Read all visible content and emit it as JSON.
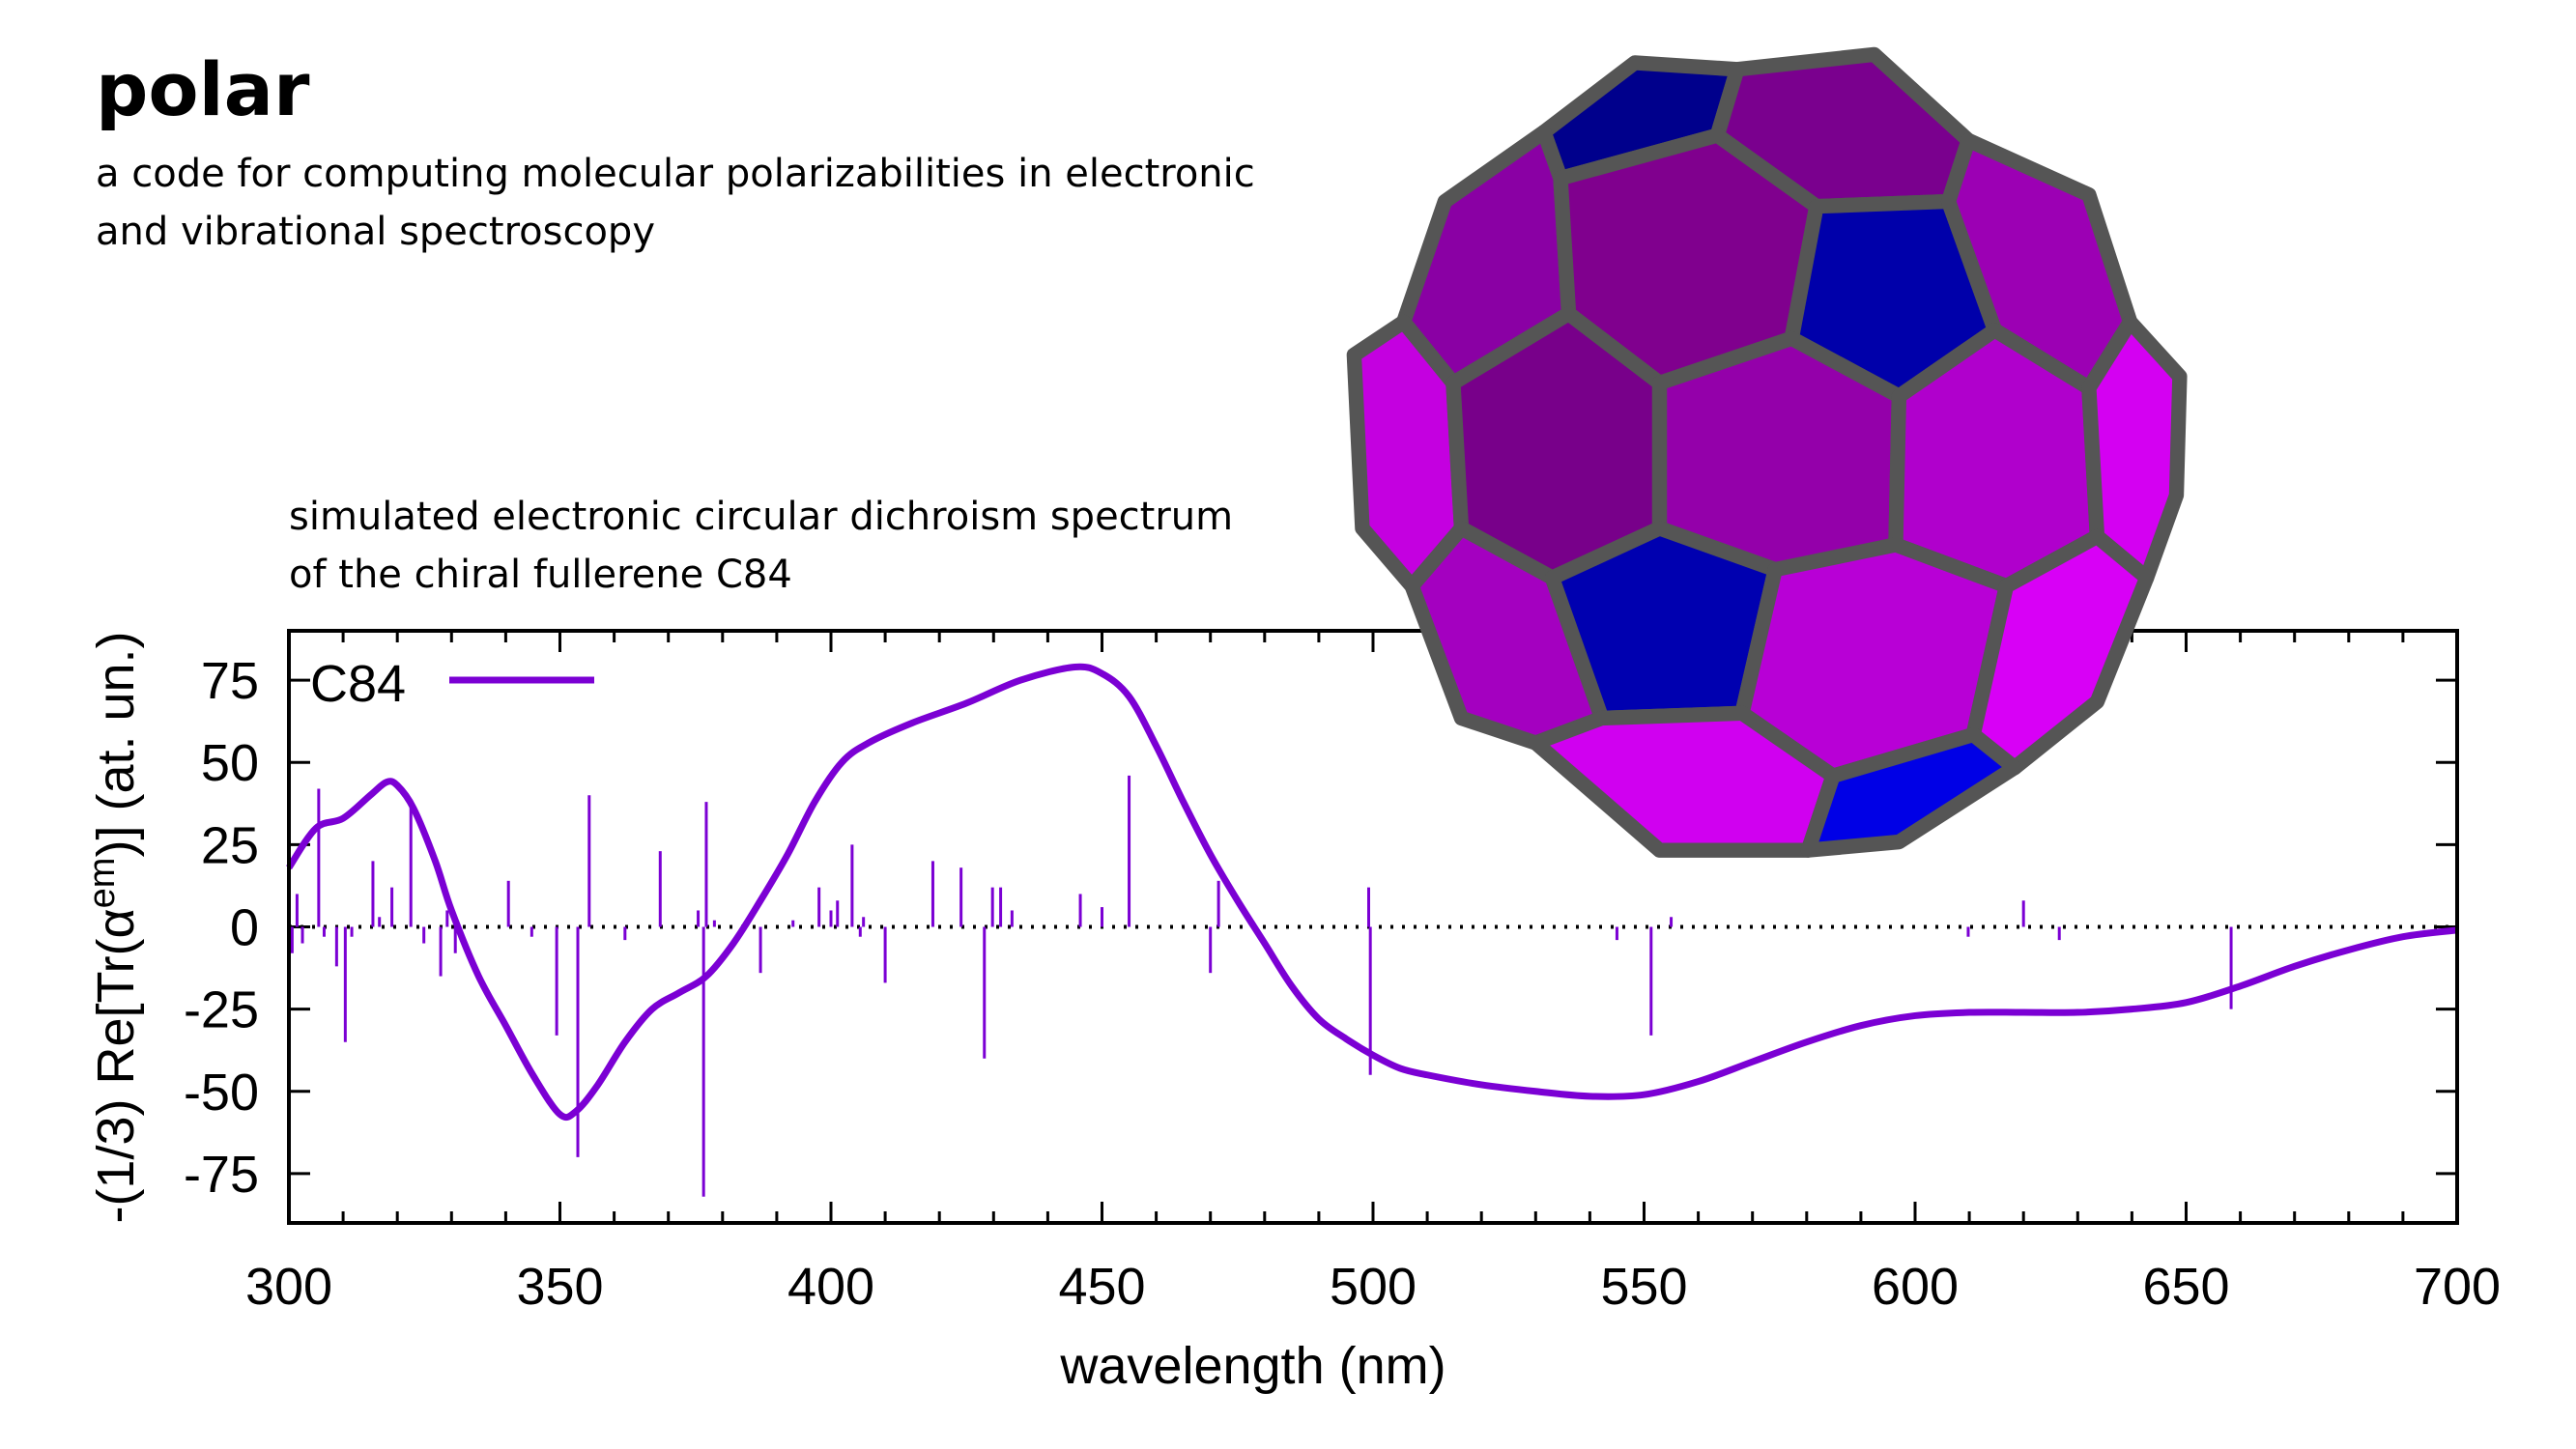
{
  "header": {
    "title": "polar",
    "subtitle_line1": "a code for computing molecular polarizabilities in electronic",
    "subtitle_line2": "and vibrational spectroscopy"
  },
  "caption": {
    "line1": "simulated electronic circular dichroism spectrum",
    "line2": "of the chiral fullerene C84"
  },
  "colors": {
    "series": "#7b00d4",
    "frame": "#000000",
    "fullerene_edge": "#555555"
  },
  "chart_data": {
    "type": "line",
    "title": "",
    "xlabel": "wavelength (nm)",
    "ylabel_main": "-(1/3) Re[Tr(α",
    "ylabel_sup": "em",
    "ylabel_tail": ")] (at. un.)",
    "xlim": [
      300,
      700
    ],
    "ylim": [
      -90,
      90
    ],
    "xticks": [
      300,
      350,
      400,
      450,
      500,
      550,
      600,
      650,
      700
    ],
    "yticks": [
      -75,
      -50,
      -25,
      0,
      25,
      50,
      75
    ],
    "xtick_labels": [
      "300",
      "350",
      "400",
      "450",
      "500",
      "550",
      "600",
      "650",
      "700"
    ],
    "ytick_labels": [
      "-75",
      "-50",
      "-25",
      "0",
      "25",
      "50",
      "75"
    ],
    "zero_line": "dotted",
    "legend": {
      "position": "top-left",
      "entries": [
        "C84"
      ]
    },
    "series": [
      {
        "name": "C84",
        "x": [
          300,
          305,
          310,
          315,
          318,
          320,
          323,
          327,
          330,
          335,
          340,
          345,
          350,
          353,
          357,
          362,
          367,
          372,
          377,
          382,
          387,
          392,
          397,
          402,
          407,
          415,
          425,
          435,
          445,
          450,
          455,
          460,
          465,
          470,
          475,
          480,
          485,
          490,
          495,
          500,
          505,
          510,
          520,
          530,
          540,
          550,
          560,
          570,
          580,
          590,
          600,
          610,
          620,
          630,
          640,
          650,
          660,
          670,
          680,
          690,
          700
        ],
        "y": [
          18,
          30,
          33,
          40,
          44,
          43,
          36,
          20,
          5,
          -15,
          -30,
          -45,
          -57,
          -56,
          -48,
          -35,
          -25,
          -20,
          -15,
          -5,
          8,
          22,
          38,
          50,
          56,
          62,
          68,
          75,
          79,
          77,
          70,
          55,
          38,
          22,
          8,
          -5,
          -18,
          -28,
          -34,
          -39,
          -43,
          -45,
          -48,
          -50,
          -51.5,
          -51,
          -47,
          -41,
          -35,
          -30,
          -27,
          -26,
          -26,
          -26,
          -25,
          -23,
          -18,
          -12,
          -7,
          -3,
          -1
        ]
      }
    ],
    "sticks": {
      "x": [
        300.6,
        301.5,
        302.5,
        305.5,
        306.5,
        308.8,
        310.4,
        311.6,
        315.5,
        316.7,
        319,
        322.5,
        324.9,
        328,
        329.2,
        330.7,
        340.5,
        344.8,
        349.4,
        353.3,
        355.4,
        362,
        368.5,
        375.5,
        376.5,
        377,
        378.5,
        387,
        393,
        397.8,
        400,
        401.2,
        403.9,
        405.4,
        406,
        410,
        418.8,
        424,
        428.3,
        429.8,
        431.3,
        433.4,
        446,
        450,
        455,
        470,
        471.5,
        499.2,
        499.5,
        545,
        551.3,
        555,
        609.8,
        620,
        626.6,
        658.3
      ],
      "y": [
        -8,
        10,
        -5,
        42,
        -3,
        -12,
        -35,
        -3,
        20,
        3,
        12,
        38,
        -5,
        -15,
        5,
        -8,
        14,
        -3,
        -33,
        -70,
        40,
        -4,
        23,
        5,
        -82,
        38,
        2,
        -14,
        2,
        12,
        5,
        8,
        25,
        -3,
        3,
        -17,
        20,
        18,
        -40,
        12,
        12,
        5,
        10,
        6,
        46,
        -14,
        14,
        12,
        -45,
        -4,
        -33,
        3,
        -3,
        8,
        -4,
        -25
      ]
    }
  }
}
